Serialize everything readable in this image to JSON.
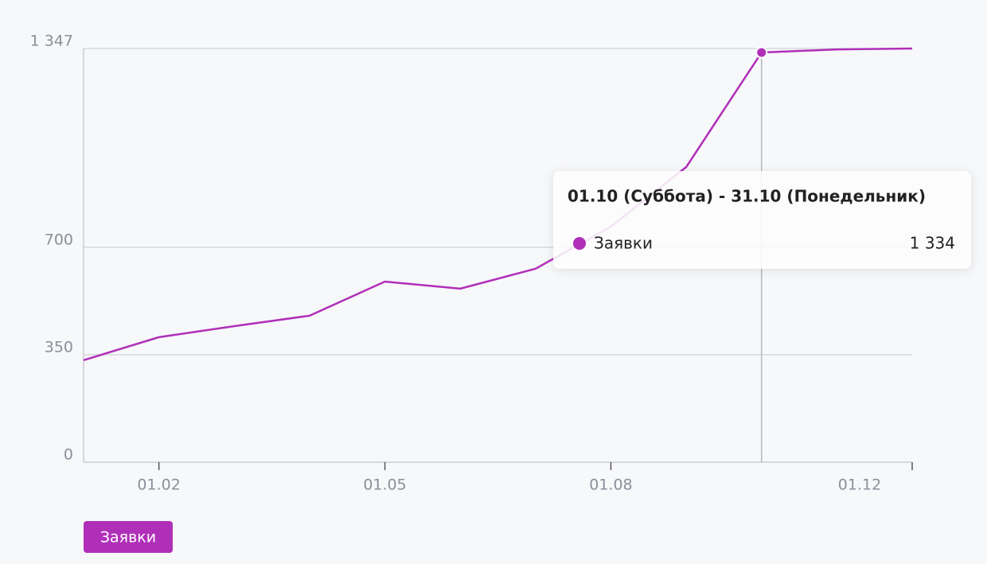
{
  "chart_data": {
    "type": "line",
    "categories": [
      null,
      "01.02",
      null,
      null,
      "01.05",
      null,
      null,
      "01.08",
      null,
      null,
      null,
      "01.12"
    ],
    "series": [
      {
        "name": "Заявки",
        "color": "#b02fb8",
        "values": [
          332,
          407,
          443,
          477,
          588,
          565,
          630,
          767,
          961,
          1334,
          1344,
          1347
        ],
        "value_labels": [
          null,
          null,
          null,
          null,
          null,
          null,
          null,
          null,
          null,
          "1 334",
          null,
          null
        ]
      }
    ],
    "ylim": [
      0,
      1347
    ],
    "yticks": [
      0,
      350,
      700,
      {
        "value": 1347,
        "label": "1 347"
      }
    ],
    "grid": true,
    "tooltip": {
      "title": "01.10 (Суббота) - 31.10 (Понедельник)"
    }
  }
}
